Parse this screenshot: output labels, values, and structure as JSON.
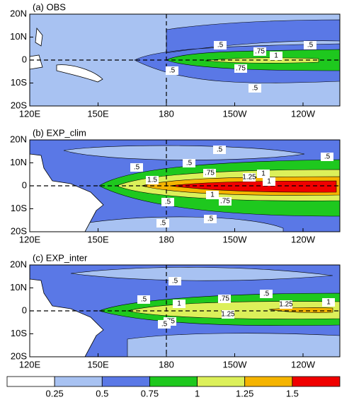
{
  "panels": [
    {
      "title": "(a) OBS",
      "contour_labels": [
        ".5",
        ".75",
        "1",
        ".5",
        ".75",
        ".5",
        ".5"
      ]
    },
    {
      "title": "(b) EXP_clim",
      "contour_labels": [
        ".5",
        ".5",
        ".5",
        ".75",
        "1",
        "1.25",
        "1",
        "1.5",
        ".5",
        "1",
        ".75",
        ".5",
        ".5",
        ".5"
      ]
    },
    {
      "title": "(c) EXP_inter",
      "contour_labels": [
        ".5",
        ".5",
        ".75",
        ".5",
        "1",
        "1",
        "1.25",
        "1.25",
        ".75",
        ".5"
      ]
    }
  ],
  "x_axis_labels": [
    "120E",
    "150E",
    "180",
    "150W",
    "120W"
  ],
  "y_axis_labels": [
    "20N",
    "10N",
    "0",
    "10S",
    "20S"
  ],
  "colorbar": {
    "colors": [
      "#ffffff",
      "#a8c2f2",
      "#5a78e6",
      "#1ec81e",
      "#dcf05a",
      "#f5b400",
      "#f00000"
    ],
    "labels": [
      "0.25",
      "0.5",
      "0.75",
      "1",
      "1.25",
      "1.5"
    ]
  }
}
